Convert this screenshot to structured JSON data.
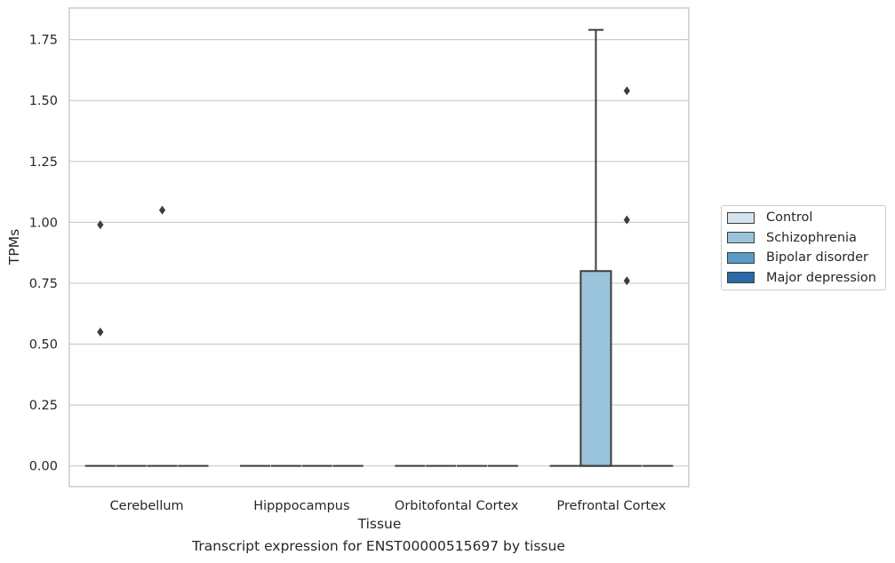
{
  "chart_data": {
    "type": "box",
    "title": "",
    "xlabel": "Tissue",
    "ylabel": "TPMs",
    "caption": "Transcript expression for ENST00000515697 by tissue",
    "categories": [
      "Cerebellum",
      "Hipppocampus",
      "Orbitofontal Cortex",
      "Prefrontal Cortex"
    ],
    "yticks": [
      "0.00",
      "0.25",
      "0.50",
      "0.75",
      "1.00",
      "1.25",
      "1.50",
      "1.75"
    ],
    "ylim": [
      -0.085,
      1.88
    ],
    "grid": true,
    "legend_position": "right",
    "series": [
      {
        "name": "Control",
        "color": "#d3e3f0",
        "boxes": [
          {
            "q1": 0,
            "median": 0,
            "q3": 0,
            "whisker_low": 0,
            "whisker_high": 0,
            "outliers": [
              0.55,
              0.99
            ]
          },
          {
            "q1": 0,
            "median": 0,
            "q3": 0,
            "whisker_low": 0,
            "whisker_high": 0,
            "outliers": []
          },
          {
            "q1": 0,
            "median": 0,
            "q3": 0,
            "whisker_low": 0,
            "whisker_high": 0,
            "outliers": []
          },
          {
            "q1": 0,
            "median": 0,
            "q3": 0,
            "whisker_low": 0,
            "whisker_high": 0,
            "outliers": []
          }
        ]
      },
      {
        "name": "Schizophrenia",
        "color": "#9ac3dc",
        "boxes": [
          {
            "q1": 0,
            "median": 0,
            "q3": 0,
            "whisker_low": 0,
            "whisker_high": 0,
            "outliers": []
          },
          {
            "q1": 0,
            "median": 0,
            "q3": 0,
            "whisker_low": 0,
            "whisker_high": 0,
            "outliers": []
          },
          {
            "q1": 0,
            "median": 0,
            "q3": 0,
            "whisker_low": 0,
            "whisker_high": 0,
            "outliers": []
          },
          {
            "q1": 0,
            "median": 0,
            "q3": 0.8,
            "whisker_low": 0,
            "whisker_high": 1.79,
            "outliers": []
          }
        ]
      },
      {
        "name": "Bipolar disorder",
        "color": "#5b9bc8",
        "boxes": [
          {
            "q1": 0,
            "median": 0,
            "q3": 0,
            "whisker_low": 0,
            "whisker_high": 0,
            "outliers": [
              1.05
            ]
          },
          {
            "q1": 0,
            "median": 0,
            "q3": 0,
            "whisker_low": 0,
            "whisker_high": 0,
            "outliers": []
          },
          {
            "q1": 0,
            "median": 0,
            "q3": 0,
            "whisker_low": 0,
            "whisker_high": 0,
            "outliers": []
          },
          {
            "q1": 0,
            "median": 0,
            "q3": 0,
            "whisker_low": 0,
            "whisker_high": 0,
            "outliers": [
              0.76,
              1.01,
              1.54
            ]
          }
        ]
      },
      {
        "name": "Major depression",
        "color": "#2a6aa8",
        "boxes": [
          {
            "q1": 0,
            "median": 0,
            "q3": 0,
            "whisker_low": 0,
            "whisker_high": 0,
            "outliers": []
          },
          {
            "q1": 0,
            "median": 0,
            "q3": 0,
            "whisker_low": 0,
            "whisker_high": 0,
            "outliers": []
          },
          {
            "q1": 0,
            "median": 0,
            "q3": 0,
            "whisker_low": 0,
            "whisker_high": 0,
            "outliers": []
          },
          {
            "q1": 0,
            "median": 0,
            "q3": 0,
            "whisker_low": 0,
            "whisker_high": 0,
            "outliers": []
          }
        ]
      }
    ]
  }
}
